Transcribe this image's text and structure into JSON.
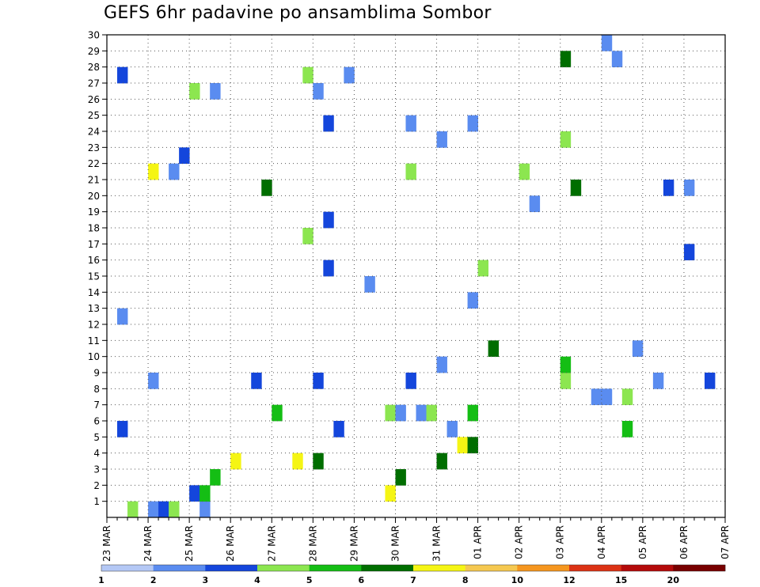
{
  "chart_data": {
    "type": "heatmap",
    "title": "GEFS 6hr padavine po ansamblima Sombor",
    "x_tick_labels": [
      "23 MAR",
      "24 MAR",
      "25 MAR",
      "26 MAR",
      "27 MAR",
      "28 MAR",
      "29 MAR",
      "30 MAR",
      "31 MAR",
      "01 APR",
      "02 APR",
      "03 APR",
      "04 APR",
      "05 APR",
      "06 APR",
      "07 APR"
    ],
    "y_tick_labels": [
      "1",
      "2",
      "3",
      "4",
      "5",
      "6",
      "7",
      "8",
      "9",
      "10",
      "11",
      "12",
      "13",
      "14",
      "15",
      "16",
      "17",
      "18",
      "19",
      "20",
      "21",
      "22",
      "23",
      "24",
      "25",
      "26",
      "27",
      "28",
      "29",
      "30"
    ],
    "steps_per_day": 4,
    "num_steps": 60,
    "colorbar": {
      "labels": [
        "1",
        "2",
        "3",
        "4",
        "5",
        "6",
        "7",
        "8",
        "10",
        "12",
        "15",
        "20"
      ],
      "colors": [
        "#b4c8f5",
        "#5a8cf0",
        "#1446dc",
        "#8ce650",
        "#14be14",
        "#006e00",
        "#f5f514",
        "#f5c850",
        "#f5961e",
        "#dc3214",
        "#b40a0a",
        "#780000"
      ]
    },
    "grid": "dotted",
    "cells": [
      [
        1,
        0,
        4
      ],
      [
        2,
        0,
        5
      ],
      [
        3,
        0,
        2
      ],
      [
        3,
        0,
        6
      ],
      [
        1,
        0,
        9
      ],
      [
        2,
        1,
        8
      ],
      [
        4,
        1,
        9
      ],
      [
        6,
        1,
        27
      ],
      [
        4,
        2,
        10
      ],
      [
        5,
        2,
        28
      ],
      [
        6,
        3,
        12
      ],
      [
        6,
        3,
        18
      ],
      [
        5,
        3,
        20
      ],
      [
        5,
        3,
        32
      ],
      [
        6,
        4,
        34
      ],
      [
        5,
        4,
        35
      ],
      [
        2,
        5,
        1
      ],
      [
        2,
        5,
        22
      ],
      [
        1,
        5,
        33
      ],
      [
        4,
        5,
        50
      ],
      [
        4,
        6,
        16
      ],
      [
        3,
        6,
        27
      ],
      [
        1,
        6,
        28
      ],
      [
        1,
        6,
        30
      ],
      [
        3,
        6,
        31
      ],
      [
        4,
        6,
        35
      ],
      [
        1,
        7,
        47
      ],
      [
        1,
        7,
        48
      ],
      [
        3,
        7,
        50
      ],
      [
        1,
        8,
        4
      ],
      [
        2,
        8,
        14
      ],
      [
        2,
        8,
        20
      ],
      [
        3,
        8,
        44
      ],
      [
        1,
        8,
        53
      ],
      [
        2,
        8,
        58
      ],
      [
        2,
        8,
        29
      ],
      [
        1,
        9,
        32
      ],
      [
        4,
        9,
        44
      ],
      [
        1,
        10,
        51
      ],
      [
        5,
        10,
        37
      ],
      [
        1,
        12,
        1
      ],
      [
        1,
        13,
        35
      ],
      [
        1,
        14,
        25
      ],
      [
        2,
        15,
        21
      ],
      [
        3,
        15,
        36
      ],
      [
        2,
        16,
        56
      ],
      [
        3,
        17,
        19
      ],
      [
        2,
        18,
        21
      ],
      [
        1,
        19,
        41
      ],
      [
        5,
        20,
        15
      ],
      [
        5,
        20,
        45
      ],
      [
        2,
        20,
        54
      ],
      [
        1,
        20,
        56
      ],
      [
        6,
        21,
        4
      ],
      [
        1,
        21,
        6
      ],
      [
        3,
        21,
        29
      ],
      [
        3,
        21,
        40
      ],
      [
        2,
        22,
        7
      ],
      [
        3,
        23,
        44
      ],
      [
        1,
        23,
        32
      ],
      [
        2,
        24,
        21
      ],
      [
        1,
        24,
        29
      ],
      [
        1,
        24,
        35
      ],
      [
        3,
        26,
        8
      ],
      [
        1,
        26,
        10
      ],
      [
        1,
        26,
        20
      ],
      [
        2,
        27,
        1
      ],
      [
        3,
        27,
        19
      ],
      [
        1,
        27,
        23
      ],
      [
        5,
        28,
        44
      ],
      [
        1,
        28,
        49
      ],
      [
        1,
        29,
        48
      ]
    ]
  }
}
